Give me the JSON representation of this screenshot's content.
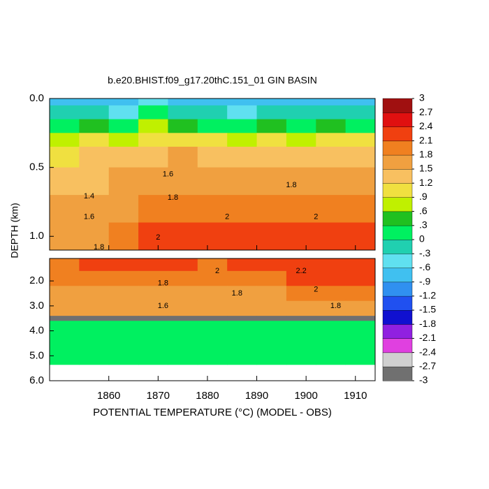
{
  "chart_data": {
    "type": "contour",
    "title": "b.e20.BHIST.f09_g17.20thC.151_01 GIN BASIN",
    "x_label": "POTENTIAL TEMPERATURE (°C) (MODEL - OBS)",
    "y_label": "DEPTH (km)",
    "xlim": [
      1848,
      1914
    ],
    "xticks": [
      1860,
      1870,
      1880,
      1890,
      1900,
      1910
    ],
    "year_bins": [
      1848,
      1854,
      1860,
      1866,
      1872,
      1878,
      1884,
      1890,
      1896,
      1902,
      1908,
      1914
    ],
    "panels": [
      {
        "ylim": [
          0,
          1.1
        ],
        "yticks": [
          {
            "value": 0,
            "label": "0.0"
          },
          {
            "value": 0.5,
            "label": "0.5"
          },
          {
            "value": 1,
            "label": "1.0"
          }
        ],
        "depth_bins": [
          0,
          0.05,
          0.15,
          0.25,
          0.35,
          0.5,
          0.7,
          0.9,
          1.1
        ],
        "values": [
          [
            -0.8,
            -0.6,
            -0.9,
            -0.5,
            -0.7,
            -0.9,
            -0.8,
            -0.6,
            -0.9,
            -0.7,
            -0.8
          ],
          [
            -0.3,
            -0.1,
            -0.4,
            0.0,
            -0.2,
            -0.3,
            -0.4,
            -0.1,
            -0.3,
            -0.2,
            -0.3
          ],
          [
            0.2,
            0.4,
            0.3,
            0.6,
            0.4,
            0.3,
            0.2,
            0.5,
            0.3,
            0.4,
            0.3
          ],
          [
            0.7,
            0.9,
            0.8,
            1.1,
            1.0,
            0.9,
            0.8,
            1.0,
            0.8,
            0.9,
            0.9
          ],
          [
            1.1,
            1.2,
            1.2,
            1.4,
            1.5,
            1.3,
            1.2,
            1.4,
            1.3,
            1.3,
            1.4
          ],
          [
            1.3,
            1.4,
            1.5,
            1.7,
            1.8,
            1.7,
            1.6,
            1.7,
            1.7,
            1.7,
            1.7
          ],
          [
            1.5,
            1.6,
            1.8,
            1.9,
            2.0,
            2.0,
            1.9,
            2.0,
            2.0,
            1.9,
            2.0
          ],
          [
            1.7,
            1.8,
            2.0,
            2.1,
            2.1,
            2.1,
            2.1,
            2.2,
            2.1,
            2.1,
            2.1
          ]
        ]
      },
      {
        "ylim": [
          1.1,
          6
        ],
        "yticks": [
          {
            "value": 2,
            "label": "2.0"
          },
          {
            "value": 3,
            "label": "3.0"
          },
          {
            "value": 4,
            "label": "4.0"
          },
          {
            "value": 5,
            "label": "5.0"
          },
          {
            "value": 6,
            "label": "6.0"
          }
        ],
        "depth_bins": [
          1.1,
          1.6,
          2.2,
          2.8,
          3.4,
          3.6,
          5.35
        ],
        "values": [
          [
            2.0,
            2.1,
            2.1,
            2.1,
            2.1,
            2.0,
            2.1,
            2.2,
            2.3,
            2.3,
            2.2
          ],
          [
            1.9,
            1.9,
            2.0,
            2.0,
            2.0,
            2.0,
            1.9,
            2.0,
            2.1,
            2.1,
            2.1
          ],
          [
            1.7,
            1.7,
            1.8,
            1.8,
            1.8,
            1.8,
            1.8,
            1.8,
            1.9,
            1.9,
            1.9
          ],
          [
            1.5,
            1.5,
            1.6,
            1.6,
            1.6,
            1.6,
            1.7,
            1.7,
            1.7,
            1.7,
            1.8
          ],
          [
            -3,
            -3,
            -3,
            -3,
            -3,
            -3,
            -3,
            -3,
            -3,
            -3,
            -3
          ],
          [
            0.1,
            0.1,
            0.1,
            0.1,
            0.1,
            0.1,
            0.1,
            0.1,
            0.1,
            0.1,
            0.1
          ]
        ]
      }
    ],
    "annotations": [
      {
        "text": "1.4",
        "x": 1856,
        "y": 0.71
      },
      {
        "text": "1.6",
        "x": 1856,
        "y": 0.86
      },
      {
        "text": "1.8",
        "x": 1858,
        "y": 1.08
      },
      {
        "text": "1.6",
        "x": 1872,
        "y": 0.55
      },
      {
        "text": "1.8",
        "x": 1873,
        "y": 0.72
      },
      {
        "text": "2",
        "x": 1870,
        "y": 1.01
      },
      {
        "text": "2",
        "x": 1884,
        "y": 0.86
      },
      {
        "text": "1.8",
        "x": 1897,
        "y": 0.63
      },
      {
        "text": "2",
        "x": 1902,
        "y": 0.86
      },
      {
        "text": "2",
        "x": 1882,
        "y": 1.6
      },
      {
        "text": "2.2",
        "x": 1899,
        "y": 1.6
      },
      {
        "text": "1.8",
        "x": 1871,
        "y": 2.1
      },
      {
        "text": "1.8",
        "x": 1886,
        "y": 2.5
      },
      {
        "text": "2",
        "x": 1902,
        "y": 2.35
      },
      {
        "text": "1.6",
        "x": 1871,
        "y": 3.0
      },
      {
        "text": "1.8",
        "x": 1906,
        "y": 3.0
      }
    ],
    "clim": [
      -3,
      3
    ],
    "colormap": [
      "#707070",
      "#d0d0d0",
      "#e040e0",
      "#9020e0",
      "#1010d0",
      "#2050f0",
      "#3090f0",
      "#40c0f0",
      "#60e0f0",
      "#20d0b0",
      "#00f060",
      "#20c020",
      "#c0f000",
      "#f0e040",
      "#f8c060",
      "#f0a040",
      "#f08020",
      "#f04010",
      "#e01010",
      "#a01010"
    ],
    "colorbar_ticks": [
      3,
      2.7,
      2.4,
      2.1,
      1.8,
      1.5,
      1.2,
      {
        "value": 0.9,
        "label": ".9"
      },
      {
        "value": 0.6,
        "label": ".6"
      },
      {
        "value": 0.3,
        "label": ".3"
      },
      0,
      {
        "value": -0.3,
        "label": "-.3"
      },
      {
        "value": -0.6,
        "label": "-.6"
      },
      {
        "value": -0.9,
        "label": "-.9"
      },
      -1.2,
      -1.5,
      -1.8,
      -2.1,
      -2.4,
      -2.7,
      -3
    ]
  }
}
